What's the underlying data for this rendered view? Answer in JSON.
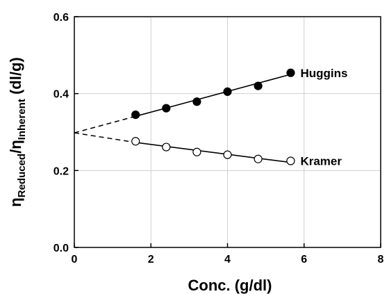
{
  "chart_data": {
    "type": "scatter",
    "xlabel": "Conc. (g/dl)",
    "ylabel": {
      "symbol": "η",
      "sub1": "Reduced",
      "mid": "/η",
      "sub2": "Inherent",
      "unit": " (dl/g)"
    },
    "xlim": [
      0,
      8
    ],
    "ylim": [
      0.0,
      0.6
    ],
    "xticks": [
      "0",
      "2",
      "4",
      "6",
      "8"
    ],
    "yticks": [
      "0.0",
      "0.2",
      "0.4",
      "0.6"
    ],
    "grid": true,
    "series": [
      {
        "name": "Huggins",
        "marker": "filled-circle",
        "x": [
          1.6,
          2.4,
          3.2,
          4.0,
          4.8,
          5.65
        ],
        "y": [
          0.345,
          0.362,
          0.379,
          0.405,
          0.42,
          0.454
        ],
        "fit": {
          "x_start": 1.6,
          "x_end": 5.65,
          "y_start": 0.341,
          "y_end": 0.45
        },
        "extrapolation": {
          "x_start": 0,
          "x_end": 1.6,
          "y_start": 0.298,
          "y_end": 0.341
        }
      },
      {
        "name": "Kramer",
        "marker": "open-circle",
        "x": [
          1.6,
          2.4,
          3.2,
          4.0,
          4.8,
          5.65
        ],
        "y": [
          0.276,
          0.261,
          0.248,
          0.241,
          0.23,
          0.225
        ],
        "fit": {
          "x_start": 1.6,
          "x_end": 5.65,
          "y_start": 0.273,
          "y_end": 0.221
        },
        "extrapolation": {
          "x_start": 0,
          "x_end": 1.6,
          "y_start": 0.298,
          "y_end": 0.273
        }
      }
    ]
  }
}
